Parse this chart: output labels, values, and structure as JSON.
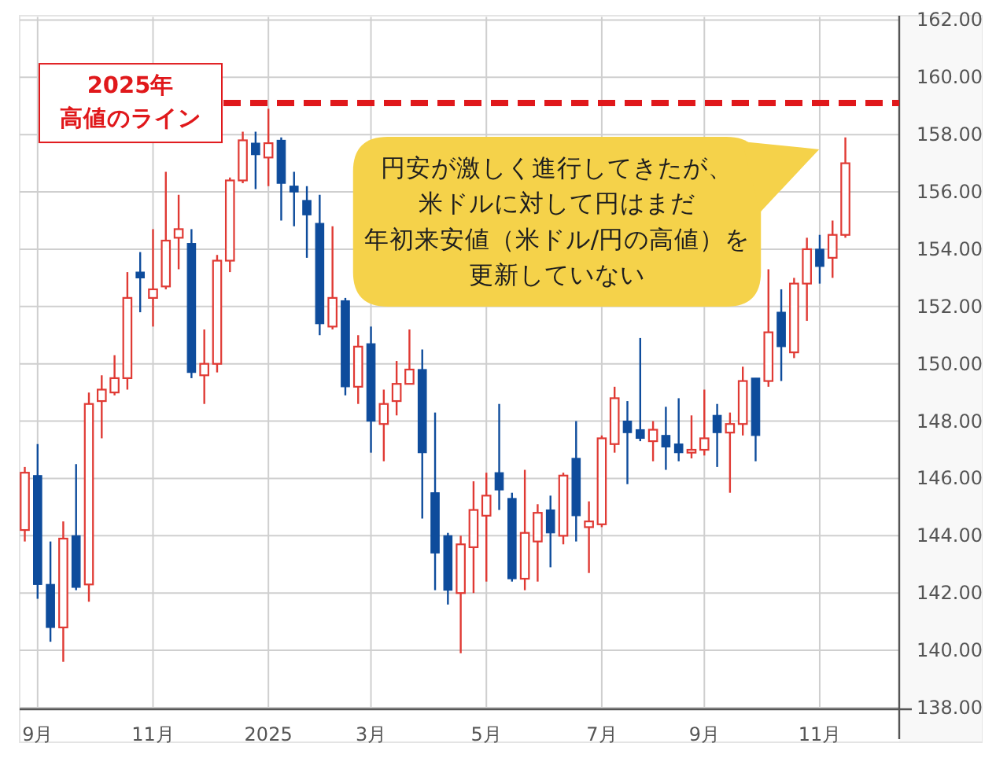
{
  "chart_data": {
    "type": "candlestick",
    "categories": [
      null,
      "9月",
      null,
      null,
      null,
      null,
      null,
      null,
      null,
      null,
      "11月",
      null,
      null,
      null,
      null,
      null,
      null,
      null,
      null,
      "2025",
      null,
      null,
      null,
      null,
      null,
      null,
      null,
      "3月",
      null,
      null,
      null,
      null,
      null,
      null,
      null,
      null,
      "5月",
      null,
      null,
      null,
      null,
      null,
      null,
      null,
      null,
      "7月",
      null,
      null,
      null,
      null,
      null,
      null,
      null,
      "9月",
      null,
      null,
      null,
      null,
      null,
      null,
      null,
      null,
      "11月",
      null,
      null
    ],
    "ohlc": [
      [
        144.2,
        146.4,
        143.8,
        146.2
      ],
      [
        146.1,
        147.2,
        141.8,
        142.3
      ],
      [
        142.3,
        143.8,
        140.3,
        140.8
      ],
      [
        140.8,
        144.5,
        139.6,
        143.9
      ],
      [
        144.0,
        146.5,
        142.1,
        142.2
      ],
      [
        142.3,
        149.0,
        141.7,
        148.6
      ],
      [
        148.7,
        149.6,
        147.4,
        149.1
      ],
      [
        149.0,
        150.3,
        148.9,
        149.5
      ],
      [
        149.5,
        153.2,
        149.1,
        152.3
      ],
      [
        153.2,
        153.9,
        151.8,
        153.0
      ],
      [
        152.3,
        154.7,
        151.3,
        152.6
      ],
      [
        152.7,
        156.7,
        152.6,
        154.3
      ],
      [
        154.4,
        155.9,
        153.3,
        154.7
      ],
      [
        154.2,
        154.7,
        149.5,
        149.7
      ],
      [
        149.6,
        151.2,
        148.6,
        150.0
      ],
      [
        150.0,
        153.8,
        149.7,
        153.6
      ],
      [
        153.6,
        156.5,
        153.2,
        156.4
      ],
      [
        156.4,
        158.1,
        156.3,
        157.8
      ],
      [
        157.7,
        158.1,
        156.1,
        157.3
      ],
      [
        157.2,
        158.9,
        156.2,
        157.7
      ],
      [
        157.8,
        157.9,
        155.0,
        156.3
      ],
      [
        156.2,
        156.7,
        154.8,
        156.0
      ],
      [
        155.7,
        156.2,
        153.7,
        155.2
      ],
      [
        154.9,
        155.9,
        151.0,
        151.4
      ],
      [
        151.3,
        154.8,
        151.2,
        152.3
      ],
      [
        152.2,
        152.3,
        148.9,
        149.2
      ],
      [
        149.2,
        151.0,
        148.6,
        150.6
      ],
      [
        150.7,
        151.3,
        146.9,
        148.0
      ],
      [
        147.9,
        149.1,
        146.6,
        148.6
      ],
      [
        148.7,
        150.1,
        148.2,
        149.3
      ],
      [
        149.3,
        151.2,
        149.3,
        149.8
      ],
      [
        149.8,
        150.5,
        144.6,
        146.9
      ],
      [
        145.5,
        148.3,
        142.1,
        143.4
      ],
      [
        144.0,
        144.1,
        141.6,
        142.1
      ],
      [
        142.0,
        144.0,
        139.9,
        143.7
      ],
      [
        143.6,
        145.9,
        142.0,
        144.9
      ],
      [
        144.7,
        146.2,
        142.4,
        145.4
      ],
      [
        146.2,
        148.6,
        144.9,
        145.6
      ],
      [
        145.3,
        145.5,
        142.4,
        142.5
      ],
      [
        142.5,
        146.3,
        142.1,
        144.1
      ],
      [
        143.8,
        145.1,
        142.4,
        144.8
      ],
      [
        144.9,
        145.4,
        142.9,
        144.1
      ],
      [
        144.0,
        146.2,
        143.7,
        146.1
      ],
      [
        146.7,
        148.0,
        143.8,
        144.7
      ],
      [
        144.3,
        145.2,
        142.7,
        144.5
      ],
      [
        144.4,
        147.5,
        144.3,
        147.4
      ],
      [
        147.2,
        149.2,
        146.9,
        148.8
      ],
      [
        148.0,
        148.7,
        145.8,
        147.6
      ],
      [
        147.7,
        150.9,
        147.3,
        147.4
      ],
      [
        147.3,
        148.0,
        146.6,
        147.7
      ],
      [
        147.5,
        148.5,
        146.3,
        147.1
      ],
      [
        147.2,
        148.8,
        146.6,
        146.9
      ],
      [
        146.9,
        148.2,
        146.7,
        147.0
      ],
      [
        147.0,
        149.1,
        146.8,
        147.4
      ],
      [
        148.2,
        148.6,
        146.4,
        147.6
      ],
      [
        147.6,
        148.3,
        145.5,
        147.9
      ],
      [
        147.9,
        149.9,
        147.5,
        149.4
      ],
      [
        149.5,
        149.5,
        146.6,
        147.5
      ],
      [
        149.4,
        153.3,
        149.2,
        151.1
      ],
      [
        151.8,
        152.6,
        149.4,
        150.6
      ],
      [
        150.4,
        153.0,
        150.2,
        152.8
      ],
      [
        152.8,
        154.4,
        151.5,
        154.0
      ],
      [
        154.0,
        154.5,
        152.8,
        153.4
      ],
      [
        153.7,
        155.0,
        153.0,
        154.5
      ],
      [
        154.5,
        157.9,
        154.4,
        157.0
      ]
    ],
    "colors": [
      "#e03a34",
      "#0e4c9c",
      "#0e4c9c",
      "#e03a34",
      "#0e4c9c",
      "#e03a34",
      "#e03a34",
      "#e03a34",
      "#e03a34",
      "#0e4c9c",
      "#e03a34",
      "#e03a34",
      "#e03a34",
      "#0e4c9c",
      "#e03a34",
      "#e03a34",
      "#e03a34",
      "#e03a34",
      "#0e4c9c",
      "#e03a34",
      "#0e4c9c",
      "#0e4c9c",
      "#0e4c9c",
      "#0e4c9c",
      "#e03a34",
      "#0e4c9c",
      "#e03a34",
      "#0e4c9c",
      "#e03a34",
      "#e03a34",
      "#e03a34",
      "#0e4c9c",
      "#0e4c9c",
      "#0e4c9c",
      "#e03a34",
      "#e03a34",
      "#e03a34",
      "#0e4c9c",
      "#0e4c9c",
      "#e03a34",
      "#e03a34",
      "#0e4c9c",
      "#e03a34",
      "#0e4c9c",
      "#e03a34",
      "#e03a34",
      "#e03a34",
      "#0e4c9c",
      "#0e4c9c",
      "#e03a34",
      "#0e4c9c",
      "#0e4c9c",
      "#e03a34",
      "#e03a34",
      "#0e4c9c",
      "#e03a34",
      "#e03a34",
      "#0e4c9c",
      "#e03a34",
      "#0e4c9c",
      "#e03a34",
      "#e03a34",
      "#0e4c9c",
      "#e03a34",
      "#e03a34"
    ],
    "ylim": [
      138,
      162
    ],
    "yticks": [
      {
        "value": 138,
        "label": "138.00"
      },
      {
        "value": 140,
        "label": "140.00"
      },
      {
        "value": 142,
        "label": "142.00"
      },
      {
        "value": 144,
        "label": "144.00"
      },
      {
        "value": 146,
        "label": "146.00"
      },
      {
        "value": 148,
        "label": "148.00"
      },
      {
        "value": 150,
        "label": "150.00"
      },
      {
        "value": 152,
        "label": "152.00"
      },
      {
        "value": 154,
        "label": "154.00"
      },
      {
        "value": 156,
        "label": "156.00"
      },
      {
        "value": 158,
        "label": "158.00"
      },
      {
        "value": 160,
        "label": "160.00"
      },
      {
        "value": 162,
        "label": "162.00"
      }
    ],
    "grid": true,
    "ref_lines": [
      {
        "axis": "y",
        "value": 159.1,
        "label": "2025年高値のライン",
        "color": "#e0181b",
        "line_style": "dashed"
      }
    ],
    "annotations": [
      "円安が激しく進行してきたが、米ドルに対して円はまだ年初来安値（米ドル/円の高値）を更新していない"
    ]
  }
}
